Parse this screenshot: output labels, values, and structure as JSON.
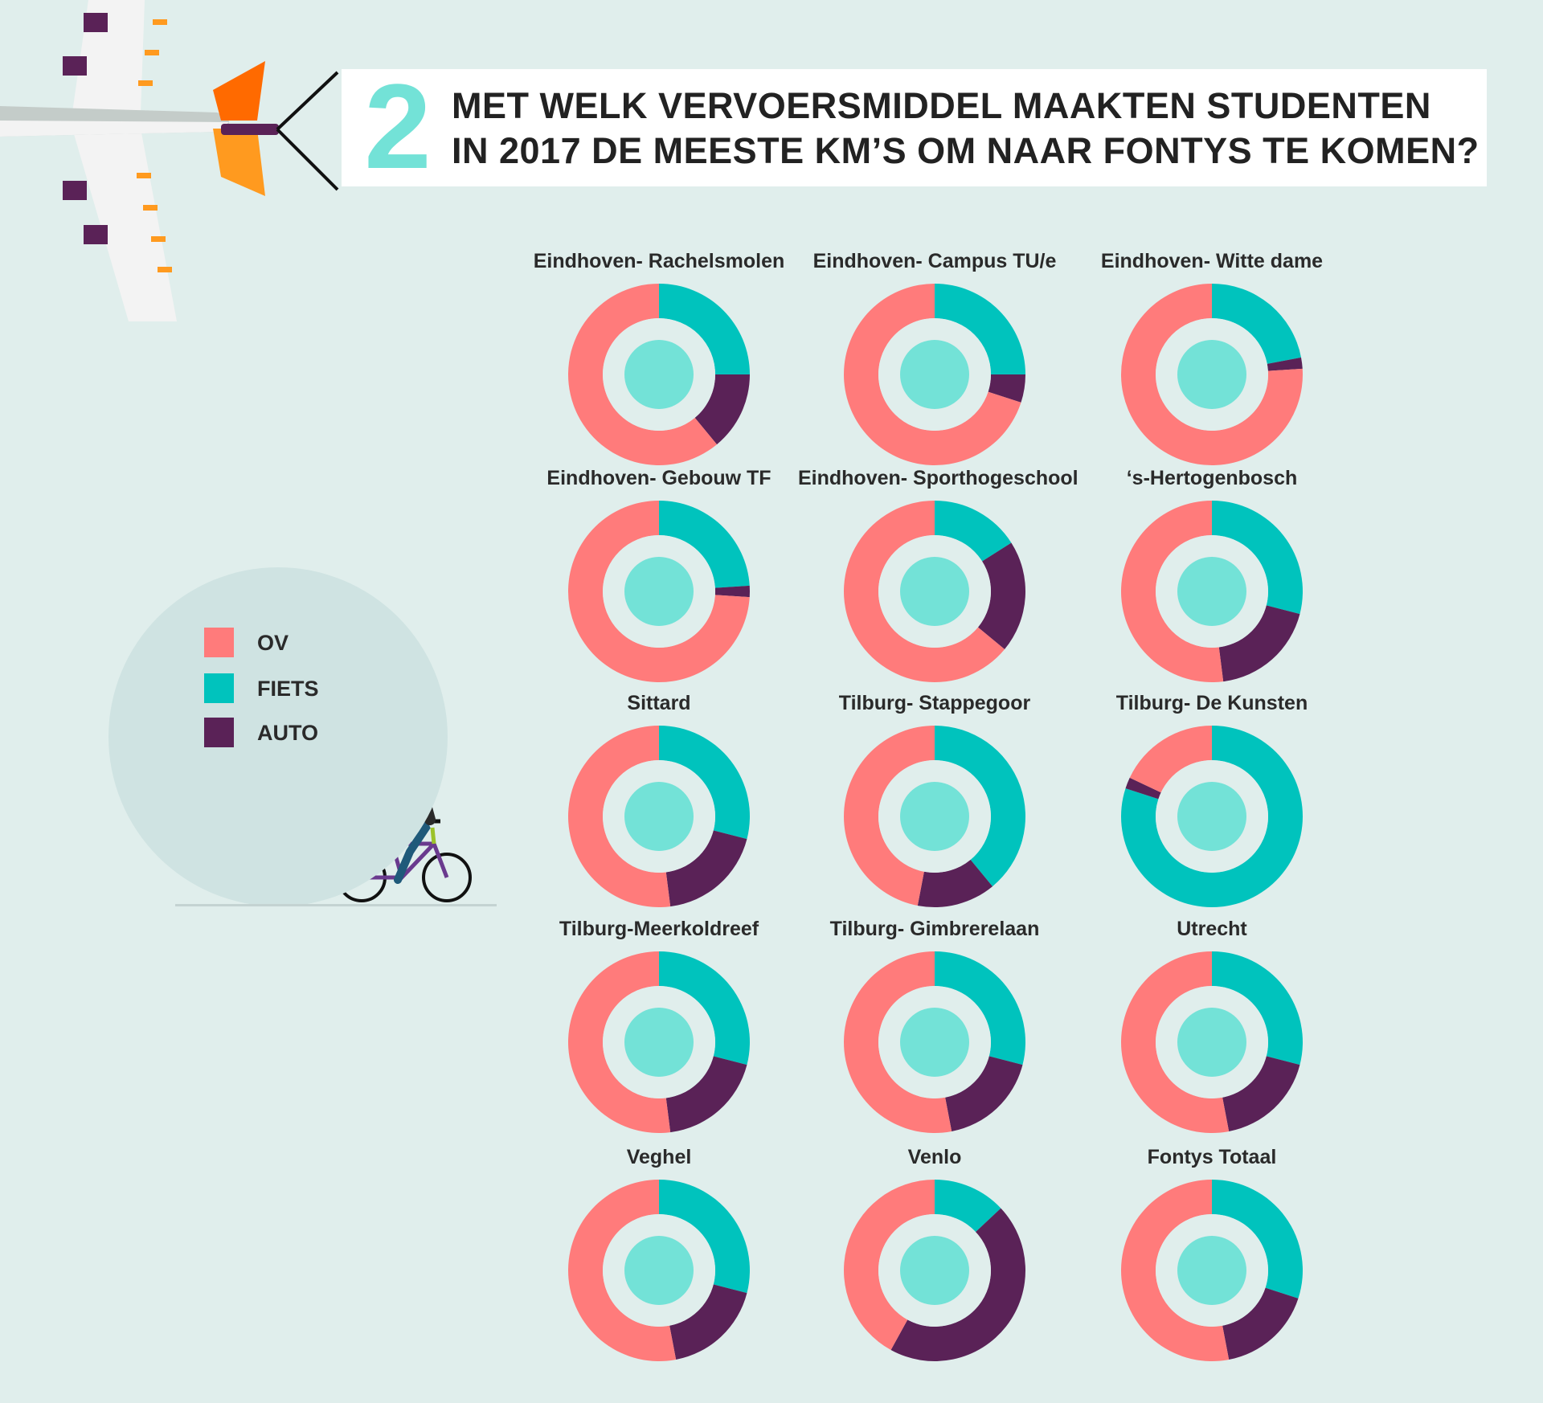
{
  "banner": {
    "number": "2",
    "title_line1": "MET WELK VERVOERSMIDDEL MAAKTEN STUDENTEN",
    "title_line2": "IN 2017 DE MEESTE KM’S OM NAAR FONTYS TE KOMEN?"
  },
  "legend": {
    "items": [
      {
        "label": "OV",
        "color": "#ff7b7b"
      },
      {
        "label": "FIETS",
        "color": "#00c3bd"
      },
      {
        "label": "AUTO",
        "color": "#5a2257"
      }
    ]
  },
  "colors": {
    "ov": "#ff7b7b",
    "fiets": "#00c3bd",
    "auto": "#5a2257",
    "center": "#73e2d7",
    "inner_ring": "#e0eeec"
  },
  "chart_data": {
    "type": "donut",
    "title": "MET WELK VERVOERSMIDDEL MAAKTEN STUDENTEN IN 2017 DE MEESTE KM’S OM NAAR FONTYS TE KOMEN?",
    "unit": "share of km",
    "series_order": [
      "FIETS",
      "AUTO",
      "OV"
    ],
    "charts": [
      {
        "title": "Eindhoven- Rachelsmolen",
        "values": {
          "FIETS": 25,
          "AUTO": 14,
          "OV": 61
        }
      },
      {
        "title": "Eindhoven- Campus TU/e",
        "values": {
          "FIETS": 25,
          "AUTO": 5,
          "OV": 70
        }
      },
      {
        "title": "Eindhoven- Witte dame",
        "values": {
          "FIETS": 22,
          "AUTO": 2,
          "OV": 76
        }
      },
      {
        "title": "Eindhoven- Gebouw TF",
        "values": {
          "FIETS": 24,
          "AUTO": 2,
          "OV": 74
        }
      },
      {
        "title": "Eindhoven- Sporthogeschool",
        "values": {
          "FIETS": 16,
          "AUTO": 20,
          "OV": 64
        }
      },
      {
        "title": "‘s-Hertogenbosch",
        "values": {
          "FIETS": 29,
          "AUTO": 19,
          "OV": 52
        }
      },
      {
        "title": "Sittard",
        "values": {
          "FIETS": 29,
          "AUTO": 19,
          "OV": 52
        }
      },
      {
        "title": "Tilburg- Stappegoor",
        "values": {
          "FIETS": 39,
          "AUTO": 14,
          "OV": 47
        }
      },
      {
        "title": "Tilburg- De Kunsten",
        "values": {
          "FIETS": 80,
          "AUTO": 2,
          "OV": 18
        }
      },
      {
        "title": "Tilburg-Meerkoldreef",
        "values": {
          "FIETS": 29,
          "AUTO": 19,
          "OV": 52
        }
      },
      {
        "title": "Tilburg- Gimbrerelaan",
        "values": {
          "FIETS": 29,
          "AUTO": 18,
          "OV": 53
        }
      },
      {
        "title": "Utrecht",
        "values": {
          "FIETS": 29,
          "AUTO": 18,
          "OV": 53
        }
      },
      {
        "title": "Veghel",
        "values": {
          "FIETS": 29,
          "AUTO": 18,
          "OV": 53
        }
      },
      {
        "title": "Venlo",
        "values": {
          "FIETS": 13,
          "AUTO": 45,
          "OV": 42
        }
      },
      {
        "title": "Fontys Totaal",
        "values": {
          "FIETS": 30,
          "AUTO": 17,
          "OV": 53
        }
      }
    ]
  }
}
